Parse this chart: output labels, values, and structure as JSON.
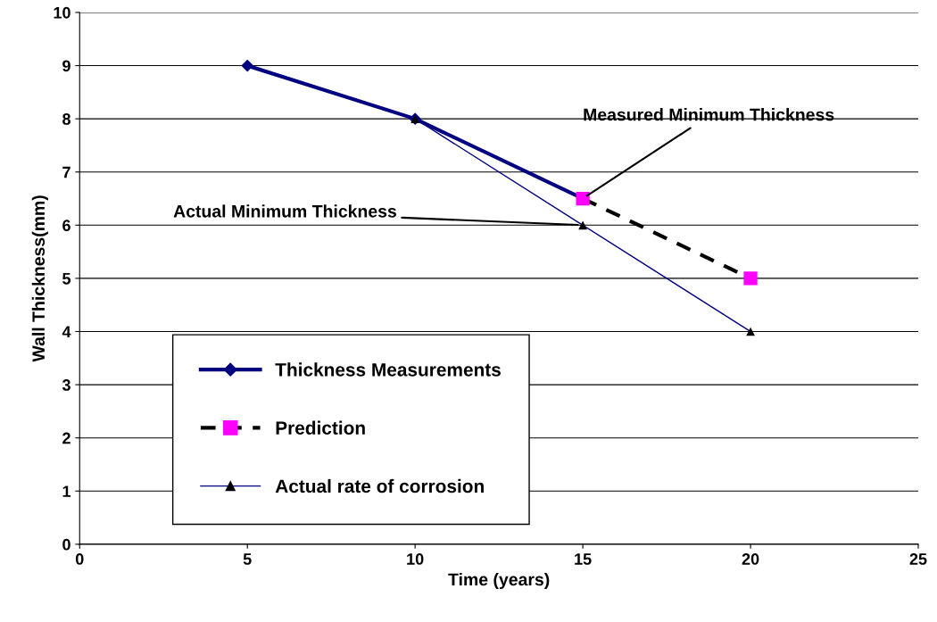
{
  "chart_data": {
    "type": "line",
    "xlabel": "Time (years)",
    "ylabel": "Wall Thickness(mm)",
    "xlim": [
      0,
      25
    ],
    "xticks": [
      0,
      5,
      10,
      15,
      20,
      25
    ],
    "ylim": [
      0,
      10
    ],
    "yticks": [
      0,
      1,
      2,
      3,
      4,
      5,
      6,
      7,
      8,
      9,
      10
    ],
    "grid": "y",
    "legend": "lower left",
    "series": [
      {
        "name": "Thickness Measurements",
        "x": [
          5,
          10,
          15
        ],
        "values": [
          9,
          8,
          6.5
        ],
        "color": "#000080",
        "marker": "diamond",
        "line_style": "solid"
      },
      {
        "name": "Prediction",
        "x": [
          15,
          20
        ],
        "values": [
          6.5,
          5
        ],
        "color": "#000000",
        "colors": [
          "#ff00ff",
          "#ff00ff"
        ],
        "marker": "square",
        "line_style": "dashed"
      },
      {
        "name": "Actual rate of corrosion",
        "x": [
          10,
          15,
          20
        ],
        "values": [
          8,
          6,
          4
        ],
        "color": "#000080",
        "colors": [
          "#000000",
          "#000000",
          "#000000"
        ],
        "marker": "triangle",
        "line_style": "solid"
      }
    ],
    "annotations": [
      {
        "text": "Measured Minimum Thickness",
        "x": 15,
        "y": 6.5
      },
      {
        "text": "Actual Minimum Thickness",
        "x": 15,
        "y": 6
      }
    ]
  }
}
